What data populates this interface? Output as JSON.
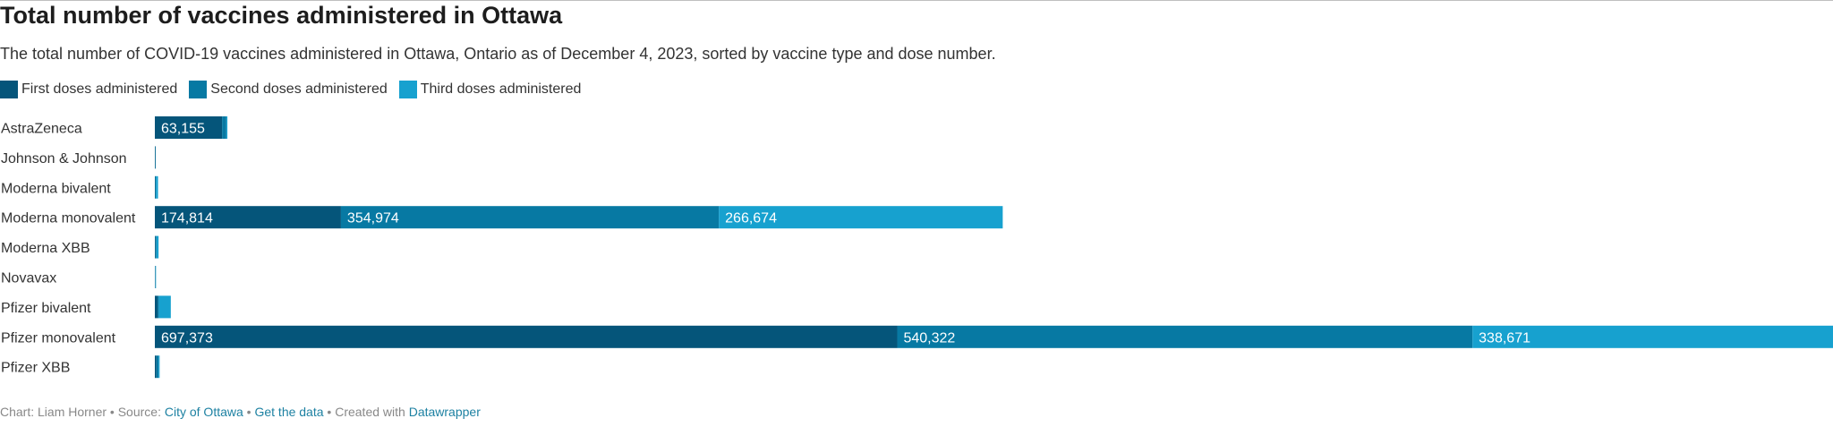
{
  "header": {
    "title": "Total number of vaccines administered in Ottawa",
    "subtitle": "The total number of COVID-19 vaccines administered in Ottawa, Ontario as of December 4, 2023, sorted by vaccine type and dose number."
  },
  "legend": [
    {
      "label": "First doses administered",
      "color": "#05557a"
    },
    {
      "label": "Second doses administered",
      "color": "#0779a3"
    },
    {
      "label": "Third doses administered",
      "color": "#17a1cf"
    }
  ],
  "chart_data": {
    "type": "bar",
    "orientation": "horizontal",
    "stacked": true,
    "categories": [
      "AstraZeneca",
      "Johnson & Johnson",
      "Moderna bivalent",
      "Moderna monovalent",
      "Moderna XBB",
      "Novavax",
      "Pfizer bivalent",
      "Pfizer monovalent",
      "Pfizer XBB"
    ],
    "series": [
      {
        "name": "First doses administered",
        "color": "#05557a",
        "values": [
          63155,
          500,
          400,
          174814,
          500,
          300,
          2500,
          697373,
          1500
        ]
      },
      {
        "name": "Second doses administered",
        "color": "#0779a3",
        "values": [
          4000,
          300,
          600,
          354974,
          1000,
          300,
          1500,
          540322,
          2000
        ]
      },
      {
        "name": "Third doses administered",
        "color": "#17a1cf",
        "values": [
          1000,
          100,
          2000,
          266674,
          2000,
          500,
          11000,
          338671,
          1000
        ]
      }
    ],
    "data_labels": [
      [
        "63,155",
        "",
        "",
        "174,814",
        "",
        "",
        "",
        "697,373",
        ""
      ],
      [
        "",
        "",
        "",
        "354,974",
        "",
        "",
        "",
        "540,322",
        ""
      ],
      [
        "",
        "",
        "",
        "266,674",
        "",
        "",
        "",
        "338,671",
        ""
      ]
    ],
    "xlim": [
      0,
      1576366
    ],
    "grid": false,
    "legend_position": "top-left"
  },
  "footer": {
    "prefix": "Chart: Liam Horner • Source: ",
    "source_link": "City of Ottawa",
    "sep1": " • ",
    "data_link": "Get the data",
    "sep2": " • Created with ",
    "tool_link": "Datawrapper"
  }
}
